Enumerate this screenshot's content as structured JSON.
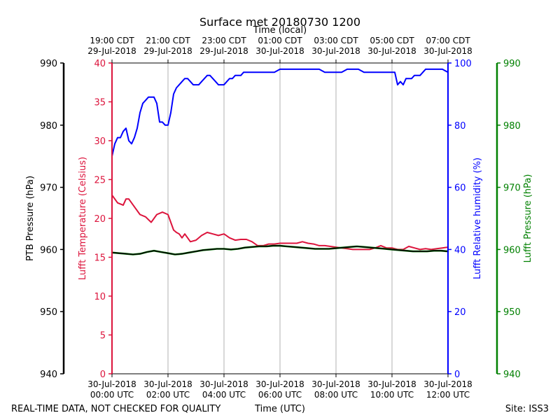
{
  "chart_data": {
    "type": "line",
    "title": "Surface met 20180730 1200",
    "top_axis_label": "Time (local)",
    "bottom_axis_label": "Time (UTC)",
    "footer_left": "REAL-TIME DATA, NOT CHECKED FOR QUALITY",
    "footer_right": "Site: ISS3",
    "x_range_hours": [
      0,
      12
    ],
    "x_ticks": [
      0,
      2,
      4,
      6,
      8,
      10,
      12
    ],
    "bottom_tick_labels": [
      {
        "date": "30-Jul-2018",
        "time": "00:00 UTC"
      },
      {
        "date": "30-Jul-2018",
        "time": "02:00 UTC"
      },
      {
        "date": "30-Jul-2018",
        "time": "04:00 UTC"
      },
      {
        "date": "30-Jul-2018",
        "time": "06:00 UTC"
      },
      {
        "date": "30-Jul-2018",
        "time": "08:00 UTC"
      },
      {
        "date": "30-Jul-2018",
        "time": "10:00 UTC"
      },
      {
        "date": "30-Jul-2018",
        "time": "12:00 UTC"
      }
    ],
    "top_tick_labels": [
      {
        "time": "19:00 CDT",
        "date": "29-Jul-2018"
      },
      {
        "time": "21:00 CDT",
        "date": "29-Jul-2018"
      },
      {
        "time": "23:00 CDT",
        "date": "29-Jul-2018"
      },
      {
        "time": "01:00 CDT",
        "date": "30-Jul-2018"
      },
      {
        "time": "03:00 CDT",
        "date": "30-Jul-2018"
      },
      {
        "time": "05:00 CDT",
        "date": "30-Jul-2018"
      },
      {
        "time": "07:00 CDT",
        "date": "30-Jul-2018"
      }
    ],
    "axes": [
      {
        "id": "ptb",
        "label": "PTB Pressure (hPa)",
        "color": "#000000",
        "range": [
          940,
          990
        ],
        "ticks": [
          940,
          950,
          960,
          970,
          980,
          990
        ],
        "tick_labels": [
          "940",
          "950",
          "960",
          "970",
          "980",
          "990"
        ]
      },
      {
        "id": "temp",
        "label": "Lufft Temperature (Celsius)",
        "color": "#dc143c",
        "range": [
          0,
          40
        ],
        "ticks": [
          0,
          5,
          10,
          15,
          20,
          25,
          30,
          35,
          40
        ],
        "tick_labels": [
          "0",
          "5",
          "10",
          "15",
          "20",
          "25",
          "30",
          "35",
          "40"
        ]
      },
      {
        "id": "rh",
        "label": "Lufft Relative humidity (%)",
        "color": "#0000ff",
        "range": [
          0,
          100
        ],
        "ticks": [
          0,
          20,
          40,
          60,
          80,
          100
        ],
        "tick_labels": [
          "0",
          "20",
          "40",
          "60",
          "80",
          "100"
        ]
      },
      {
        "id": "lp",
        "label": "Lufft Pressure (hPa)",
        "color": "#008000",
        "range": [
          940,
          990
        ],
        "ticks": [
          940,
          950,
          960,
          970,
          980,
          990
        ],
        "tick_labels": [
          "940",
          "950",
          "960",
          "970",
          "980",
          "990"
        ]
      }
    ],
    "series": [
      {
        "name": "Lufft Relative humidity",
        "axis": "rh",
        "color": "#0000ff",
        "width": 2,
        "x": [
          0,
          0.1,
          0.2,
          0.3,
          0.4,
          0.5,
          0.6,
          0.7,
          0.8,
          0.9,
          1.0,
          1.1,
          1.2,
          1.3,
          1.4,
          1.5,
          1.6,
          1.7,
          1.8,
          1.9,
          2.0,
          2.1,
          2.2,
          2.3,
          2.4,
          2.5,
          2.6,
          2.7,
          2.8,
          2.9,
          3.0,
          3.1,
          3.2,
          3.3,
          3.4,
          3.5,
          3.6,
          3.7,
          3.8,
          3.9,
          4.0,
          4.1,
          4.2,
          4.3,
          4.4,
          4.5,
          4.6,
          4.7,
          4.8,
          4.9,
          5.0,
          5.2,
          5.4,
          5.6,
          5.8,
          6.0,
          6.2,
          6.4,
          6.6,
          6.8,
          7.0,
          7.2,
          7.4,
          7.6,
          7.8,
          8.0,
          8.2,
          8.4,
          8.6,
          8.8,
          9.0,
          9.2,
          9.4,
          9.6,
          9.8,
          10.0,
          10.1,
          10.2,
          10.3,
          10.4,
          10.5,
          10.6,
          10.7,
          10.8,
          10.9,
          11.0,
          11.2,
          11.4,
          11.6,
          11.8,
          12.0
        ],
        "y": [
          70,
          74,
          76,
          76,
          78,
          79,
          75,
          74,
          76,
          79,
          84,
          87,
          88,
          89,
          89,
          89,
          87,
          81,
          81,
          80,
          80,
          84,
          90,
          92,
          93,
          94,
          95,
          95,
          94,
          93,
          93,
          93,
          94,
          95,
          96,
          96,
          95,
          94,
          93,
          93,
          93,
          94,
          95,
          95,
          96,
          96,
          96,
          97,
          97,
          97,
          97,
          97,
          97,
          97,
          97,
          98,
          98,
          98,
          98,
          98,
          98,
          98,
          98,
          97,
          97,
          97,
          97,
          98,
          98,
          98,
          97,
          97,
          97,
          97,
          97,
          97,
          97,
          93,
          94,
          93,
          95,
          95,
          95,
          96,
          96,
          96,
          98,
          98,
          98,
          98,
          97
        ]
      },
      {
        "name": "Lufft Temperature",
        "axis": "temp",
        "color": "#dc143c",
        "width": 2,
        "x": [
          0,
          0.2,
          0.4,
          0.5,
          0.6,
          0.8,
          1.0,
          1.2,
          1.4,
          1.6,
          1.8,
          2.0,
          2.2,
          2.3,
          2.4,
          2.5,
          2.6,
          2.8,
          3.0,
          3.2,
          3.4,
          3.6,
          3.8,
          4.0,
          4.2,
          4.4,
          4.6,
          4.8,
          5.0,
          5.2,
          5.4,
          5.6,
          5.8,
          6.0,
          6.2,
          6.4,
          6.6,
          6.8,
          7.0,
          7.2,
          7.4,
          7.6,
          7.8,
          8.0,
          8.2,
          8.4,
          8.6,
          8.8,
          9.0,
          9.2,
          9.4,
          9.6,
          9.8,
          10.0,
          10.2,
          10.4,
          10.6,
          10.8,
          11.0,
          11.2,
          11.4,
          11.6,
          11.8,
          12.0
        ],
        "y": [
          23,
          22,
          21.7,
          22.5,
          22.5,
          21.5,
          20.5,
          20.2,
          19.5,
          20.5,
          20.8,
          20.5,
          18.5,
          18.2,
          18.0,
          17.5,
          18.0,
          17.0,
          17.2,
          17.8,
          18.2,
          18.0,
          17.8,
          18.0,
          17.5,
          17.2,
          17.3,
          17.3,
          17.0,
          16.5,
          16.5,
          16.7,
          16.7,
          16.8,
          16.8,
          16.8,
          16.8,
          17.0,
          16.8,
          16.7,
          16.5,
          16.5,
          16.4,
          16.3,
          16.2,
          16.1,
          16.0,
          16.0,
          16.0,
          16.0,
          16.2,
          16.5,
          16.2,
          16.2,
          16.0,
          16.0,
          16.4,
          16.2,
          16.0,
          16.1,
          16.0,
          16.1,
          16.2,
          16.3
        ]
      },
      {
        "name": "Lufft Pressure",
        "axis": "lp",
        "color": "#008000",
        "width": 2.6,
        "x": [
          0,
          0.25,
          0.5,
          0.75,
          1.0,
          1.25,
          1.5,
          1.75,
          2.0,
          2.25,
          2.5,
          2.75,
          3.0,
          3.25,
          3.5,
          3.75,
          4.0,
          4.25,
          4.5,
          4.75,
          5.0,
          5.25,
          5.5,
          5.75,
          6.0,
          6.25,
          6.5,
          6.75,
          7.0,
          7.25,
          7.5,
          7.75,
          8.0,
          8.25,
          8.5,
          8.75,
          9.0,
          9.25,
          9.5,
          9.75,
          10.0,
          10.25,
          10.5,
          10.75,
          11.0,
          11.25,
          11.5,
          11.75,
          12.0
        ],
        "y": [
          959.5,
          959.4,
          959.3,
          959.2,
          959.3,
          959.6,
          959.8,
          959.6,
          959.4,
          959.2,
          959.3,
          959.5,
          959.7,
          959.9,
          960.0,
          960.1,
          960.1,
          960.0,
          960.1,
          960.3,
          960.4,
          960.5,
          960.5,
          960.6,
          960.6,
          960.5,
          960.4,
          960.3,
          960.2,
          960.1,
          960.1,
          960.1,
          960.2,
          960.3,
          960.4,
          960.5,
          960.4,
          960.3,
          960.2,
          960.1,
          960.0,
          959.9,
          959.8,
          959.7,
          959.7,
          959.7,
          959.8,
          959.8,
          959.7
        ]
      },
      {
        "name": "PTB Pressure",
        "axis": "ptb",
        "color": "#000000",
        "width": 1.6,
        "x": [
          0,
          0.25,
          0.5,
          0.75,
          1.0,
          1.25,
          1.5,
          1.75,
          2.0,
          2.25,
          2.5,
          2.75,
          3.0,
          3.25,
          3.5,
          3.75,
          4.0,
          4.25,
          4.5,
          4.75,
          5.0,
          5.25,
          5.5,
          5.75,
          6.0,
          6.25,
          6.5,
          6.75,
          7.0,
          7.25,
          7.5,
          7.75,
          8.0,
          8.25,
          8.5,
          8.75,
          9.0,
          9.25,
          9.5,
          9.75,
          10.0,
          10.25,
          10.5,
          10.75,
          11.0,
          11.25,
          11.5,
          11.75,
          12.0
        ],
        "y": [
          959.5,
          959.4,
          959.3,
          959.2,
          959.3,
          959.6,
          959.8,
          959.6,
          959.4,
          959.2,
          959.3,
          959.5,
          959.7,
          959.9,
          960.0,
          960.1,
          960.1,
          960.0,
          960.1,
          960.3,
          960.4,
          960.5,
          960.5,
          960.6,
          960.6,
          960.5,
          960.4,
          960.3,
          960.2,
          960.1,
          960.1,
          960.1,
          960.2,
          960.3,
          960.4,
          960.5,
          960.4,
          960.3,
          960.2,
          960.1,
          960.0,
          959.9,
          959.8,
          959.7,
          959.7,
          959.7,
          959.8,
          959.8,
          959.7
        ]
      }
    ]
  }
}
